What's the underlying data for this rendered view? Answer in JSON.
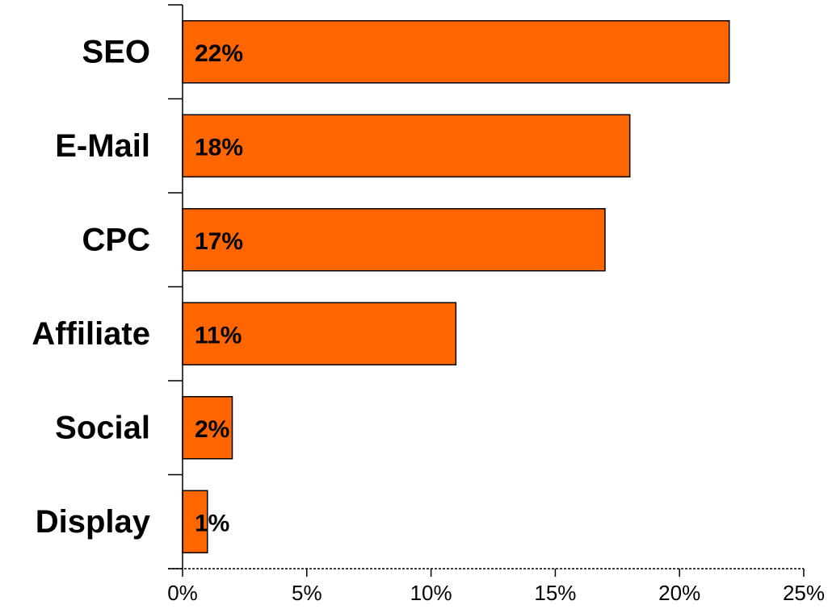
{
  "chart_data": {
    "type": "bar",
    "orientation": "horizontal",
    "categories": [
      "SEO",
      "E-Mail",
      "CPC",
      "Affiliate",
      "Social",
      "Display"
    ],
    "values": [
      22,
      18,
      17,
      11,
      2,
      1
    ],
    "data_labels": [
      "22%",
      "18%",
      "17%",
      "11%",
      "2%",
      "1%"
    ],
    "x_ticks": [
      "0%",
      "5%",
      "10%",
      "15%",
      "20%",
      "25%"
    ],
    "x_tick_values": [
      0,
      5,
      10,
      15,
      20,
      25
    ],
    "xlim": [
      0,
      25
    ],
    "unit": "%",
    "title": "",
    "xlabel": "",
    "ylabel": "",
    "grid": false,
    "legend": "none",
    "colors": {
      "bar_fill": "#FF6600",
      "bar_stroke": "#000000",
      "axis": "#000000"
    }
  }
}
